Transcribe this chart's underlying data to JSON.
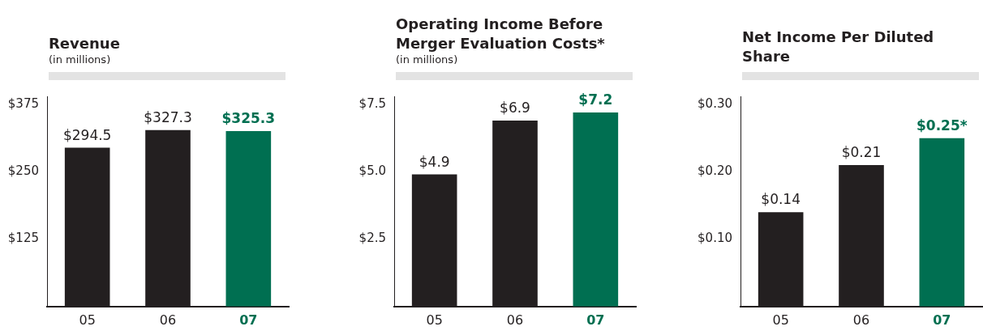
{
  "chart_data": [
    {
      "type": "bar",
      "title": "Revenue",
      "subtitle": "(in millions)",
      "categories": [
        "05",
        "06",
        "07"
      ],
      "values": [
        294.5,
        327.3,
        325.3
      ],
      "colors": [
        "#231f20",
        "#231f20",
        "#006f51"
      ],
      "value_labels": [
        "$294.5",
        "$327.3",
        "$325.3"
      ],
      "ylim": [
        0,
        390
      ],
      "yticks": [
        {
          "value": 125,
          "label": "$125"
        },
        {
          "value": 250,
          "label": "$250"
        },
        {
          "value": 375,
          "label": "$375"
        }
      ]
    },
    {
      "type": "bar",
      "title": "Operating Income Before Merger Evaluation Costs*",
      "subtitle": "(in millions)",
      "categories": [
        "05",
        "06",
        "07"
      ],
      "values": [
        4.9,
        6.9,
        7.2
      ],
      "colors": [
        "#231f20",
        "#231f20",
        "#006f51"
      ],
      "value_labels": [
        "$4.9",
        "$6.9",
        "$7.2"
      ],
      "ylim": [
        0,
        7.8
      ],
      "yticks": [
        {
          "value": 2.5,
          "label": "$2.5"
        },
        {
          "value": 5,
          "label": "$5.0"
        },
        {
          "value": 7.5,
          "label": "$7.5"
        }
      ]
    },
    {
      "type": "bar",
      "title": "Net Income Per Diluted Share",
      "categories": [
        "05",
        "06",
        "07"
      ],
      "values": [
        0.14,
        0.21,
        0.25
      ],
      "colors": [
        "#231f20",
        "#231f20",
        "#006f51"
      ],
      "value_labels": [
        "$0.14",
        "$0.21",
        "$0.25*"
      ],
      "ylim": [
        0,
        0.312
      ],
      "yticks": [
        {
          "value": 0.1,
          "label": "$0.10"
        },
        {
          "value": 0.2,
          "label": "$0.20"
        },
        {
          "value": 0.3,
          "label": "$0.30"
        }
      ]
    }
  ]
}
